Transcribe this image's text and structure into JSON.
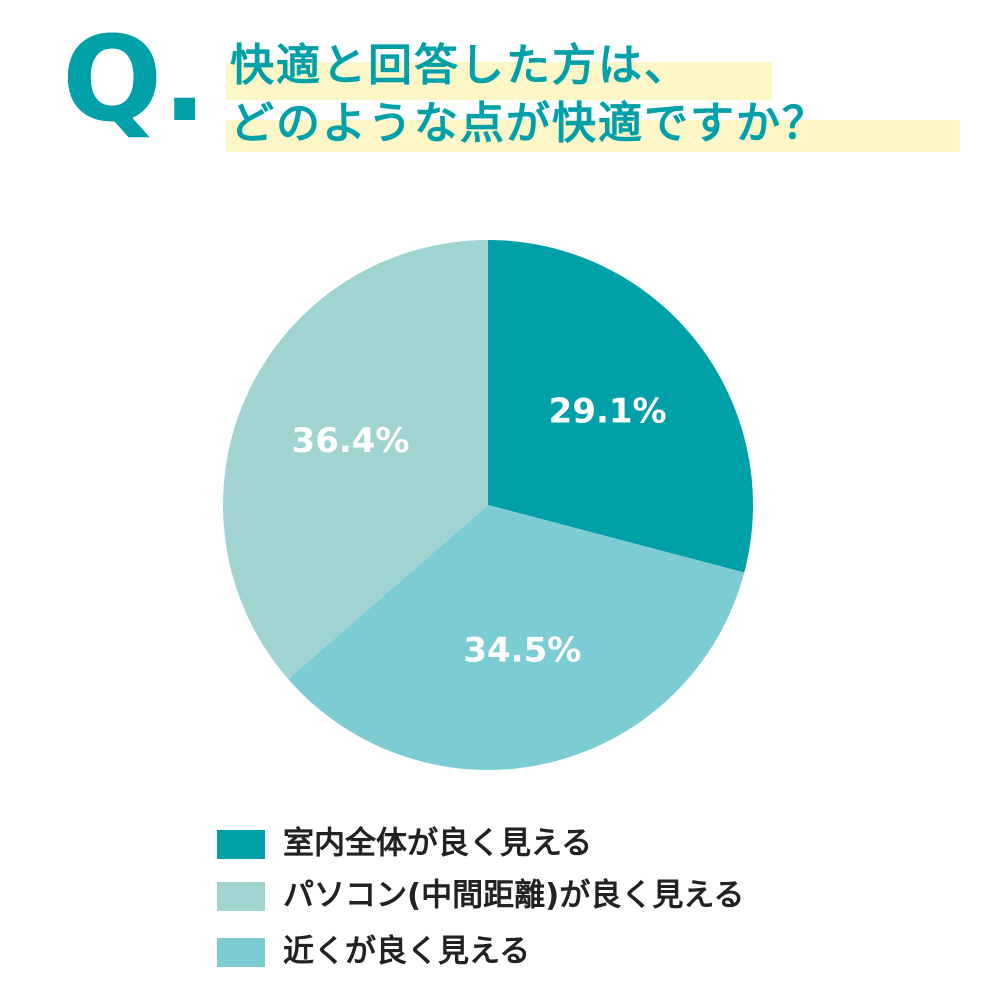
{
  "chart_data": {
    "type": "pie",
    "marker": "Q.",
    "title": [
      "快適と回答した方は、",
      "どのような点が快適ですか？"
    ],
    "categories": [
      "室内全体が良く見える",
      "近くが良く見える",
      "パソコン(中間距離)が良く見える"
    ],
    "values": [
      29.1,
      34.5,
      36.4
    ],
    "value_labels": [
      "29.1%",
      "34.5%",
      "36.4%"
    ],
    "colors": [
      "#00a0a8",
      "#7ccdd3",
      "#a0d4d1"
    ]
  }
}
